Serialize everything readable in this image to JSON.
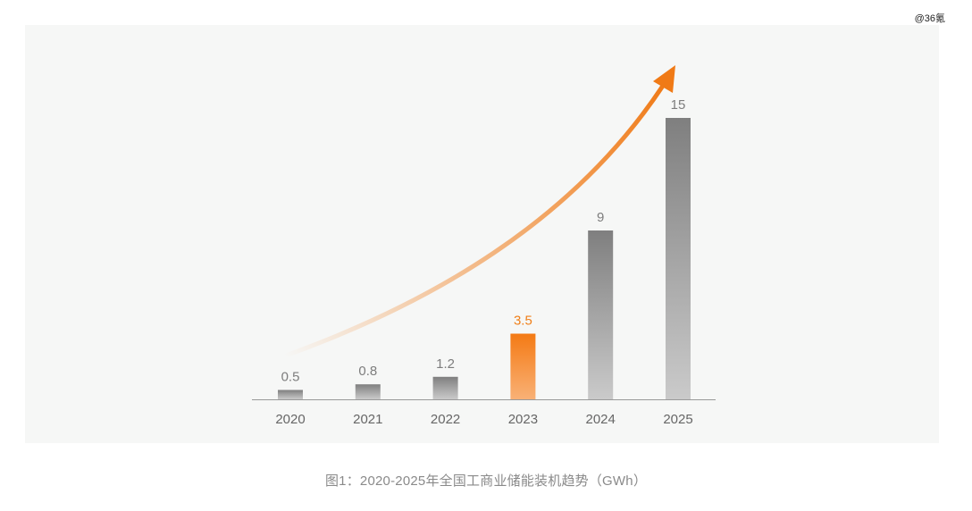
{
  "watermark": "@36氪",
  "caption": "图1：2020-2025年全国工商业储能装机趋势（GWh）",
  "colors": {
    "bar_top": "#7f7f7f",
    "bar_bottom": "#cacaca",
    "highlight_top": "#f47a14",
    "highlight_bottom": "#f9b176",
    "highlight_label": "#f07f19",
    "arrow": "#f07a16",
    "axis": "#999999",
    "panel": "#f6f7f6"
  },
  "chart_data": {
    "type": "bar",
    "categories": [
      "2020",
      "2021",
      "2022",
      "2023",
      "2024",
      "2025"
    ],
    "values": [
      0.5,
      0.8,
      1.2,
      3.5,
      9,
      15
    ],
    "data_labels": [
      "0.5",
      "0.8",
      "1.2",
      "3.5",
      "9",
      "15"
    ],
    "highlight_index": 3,
    "ylim": [
      0,
      15
    ],
    "grid": false,
    "trend_arrow": true
  }
}
